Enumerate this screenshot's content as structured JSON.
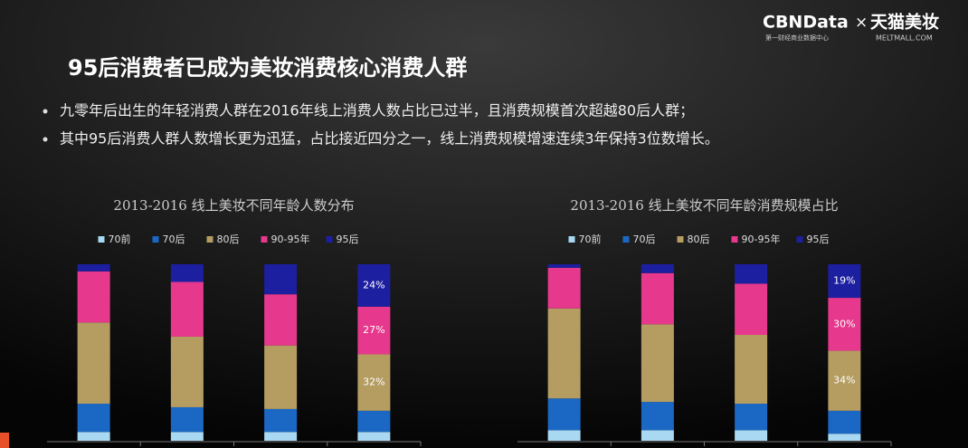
{
  "logo": {
    "brand": "CBNData",
    "cross": "×",
    "partner": "天猫美妆",
    "brand_sub": "第一财经商业数据中心",
    "partner_sub": "MELTMALL.COM"
  },
  "header": {
    "title": "95后消费者已成为美妆消费核心消费人群"
  },
  "bullets": [
    "九零年后出生的年轻消费人群在2016年线上消费人数占比已过半，且消费规模首次超越80后人群；",
    "其中95后消费人群人数增长更为迅猛，占比接近四分之一，线上消费规模增速连续3年保持3位数增长。"
  ],
  "chart_data": [
    {
      "type": "stacked_bar",
      "title": "2013-2016 线上美妆不同年龄人数分布",
      "categories": [
        null,
        null,
        null,
        null
      ],
      "ylim": [
        0,
        100
      ],
      "series": [
        {
          "name": "70前",
          "color": "#a9d9f2",
          "values": [
            5,
            5,
            5,
            5
          ]
        },
        {
          "name": "70后",
          "color": "#1b68c4",
          "values": [
            16,
            14,
            13,
            12
          ]
        },
        {
          "name": "80后",
          "color": "#b59d62",
          "values": [
            46,
            40,
            36,
            32
          ],
          "value_labels": [
            null,
            null,
            null,
            "32%"
          ]
        },
        {
          "name": "90-95年",
          "color": "#e6388c",
          "values": [
            29,
            31,
            29,
            27
          ],
          "value_labels": [
            null,
            null,
            null,
            "27%"
          ]
        },
        {
          "name": "95后",
          "color": "#1c1fa0",
          "values": [
            4,
            10,
            17,
            24
          ],
          "value_labels": [
            null,
            null,
            null,
            "24%"
          ]
        }
      ]
    },
    {
      "type": "stacked_bar",
      "title": "2013-2016 线上美妆不同年龄消费规模占比",
      "categories": [
        null,
        null,
        null,
        null
      ],
      "ylim": [
        0,
        100
      ],
      "series": [
        {
          "name": "70前",
          "color": "#a9d9f2",
          "values": [
            6,
            6,
            6,
            4
          ]
        },
        {
          "name": "70后",
          "color": "#1b68c4",
          "values": [
            18,
            16,
            15,
            13
          ]
        },
        {
          "name": "80后",
          "color": "#b59d62",
          "values": [
            51,
            44,
            39,
            34
          ],
          "value_labels": [
            null,
            null,
            null,
            "34%"
          ]
        },
        {
          "name": "90-95年",
          "color": "#e6388c",
          "values": [
            23,
            29,
            29,
            30
          ],
          "value_labels": [
            null,
            null,
            null,
            "30%"
          ]
        },
        {
          "name": "95后",
          "color": "#1c1fa0",
          "values": [
            2,
            5,
            11,
            19
          ],
          "value_labels": [
            null,
            null,
            null,
            "19%"
          ]
        }
      ]
    }
  ]
}
